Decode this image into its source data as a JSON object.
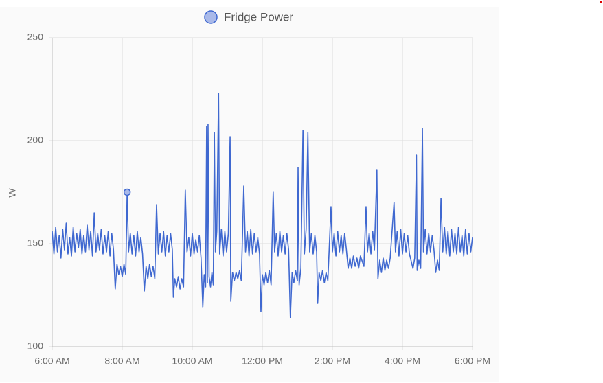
{
  "chart_data": {
    "type": "line",
    "y_label": "W",
    "series": [
      {
        "name": "Fridge Power",
        "color": "#3f68d0",
        "legend_fill": "#a9b9e9",
        "x": [
          6.0,
          6.05,
          6.1,
          6.15,
          6.2,
          6.25,
          6.3,
          6.35,
          6.4,
          6.45,
          6.5,
          6.55,
          6.6,
          6.65,
          6.7,
          6.75,
          6.8,
          6.85,
          6.9,
          6.95,
          7.0,
          7.05,
          7.1,
          7.15,
          7.2,
          7.25,
          7.3,
          7.35,
          7.4,
          7.45,
          7.5,
          7.55,
          7.6,
          7.65,
          7.7,
          7.75,
          7.8,
          7.85,
          7.9,
          7.95,
          8.0,
          8.05,
          8.1,
          8.14,
          8.18,
          8.23,
          8.28,
          8.33,
          8.38,
          8.43,
          8.48,
          8.53,
          8.58,
          8.63,
          8.68,
          8.73,
          8.78,
          8.83,
          8.88,
          8.93,
          8.98,
          9.03,
          9.08,
          9.13,
          9.18,
          9.23,
          9.28,
          9.33,
          9.38,
          9.43,
          9.46,
          9.5,
          9.55,
          9.6,
          9.65,
          9.7,
          9.75,
          9.8,
          9.85,
          9.9,
          9.95,
          10.0,
          10.05,
          10.1,
          10.15,
          10.2,
          10.25,
          10.3,
          10.34,
          10.38,
          10.41,
          10.43,
          10.45,
          10.48,
          10.52,
          10.56,
          10.6,
          10.63,
          10.66,
          10.7,
          10.75,
          10.78,
          10.83,
          10.88,
          10.93,
          10.98,
          11.03,
          11.08,
          11.1,
          11.15,
          11.2,
          11.25,
          11.3,
          11.35,
          11.4,
          11.47,
          11.52,
          11.57,
          11.62,
          11.67,
          11.72,
          11.77,
          11.82,
          11.87,
          11.92,
          11.96,
          12.0,
          12.05,
          12.1,
          12.15,
          12.2,
          12.25,
          12.31,
          12.35,
          12.4,
          12.45,
          12.5,
          12.55,
          12.6,
          12.65,
          12.7,
          12.75,
          12.8,
          12.85,
          12.9,
          12.95,
          13.0,
          13.02,
          13.05,
          13.1,
          13.16,
          13.2,
          13.25,
          13.3,
          13.35,
          13.4,
          13.45,
          13.5,
          13.55,
          13.58,
          13.62,
          13.67,
          13.72,
          13.77,
          13.82,
          13.87,
          13.96,
          14.0,
          14.05,
          14.1,
          14.15,
          14.2,
          14.25,
          14.3,
          14.35,
          14.4,
          14.45,
          14.5,
          14.55,
          14.6,
          14.65,
          14.7,
          14.75,
          14.8,
          14.9,
          14.96,
          15.0,
          15.05,
          15.1,
          15.15,
          15.2,
          15.27,
          15.3,
          15.35,
          15.4,
          15.45,
          15.5,
          15.55,
          15.6,
          15.65,
          15.76,
          15.8,
          15.85,
          15.9,
          15.95,
          16.0,
          16.05,
          16.1,
          16.15,
          16.2,
          16.3,
          16.35,
          16.4,
          16.42,
          16.47,
          16.52,
          16.57,
          16.6,
          16.65,
          16.7,
          16.75,
          16.8,
          16.85,
          16.9,
          16.95,
          17.0,
          17.05,
          17.1,
          17.15,
          17.2,
          17.25,
          17.3,
          17.35,
          17.4,
          17.45,
          17.5,
          17.55,
          17.6,
          17.65,
          17.7,
          17.75,
          17.8,
          17.85,
          17.9,
          17.95,
          18.0
        ],
        "values": [
          156,
          145,
          158,
          146,
          154,
          143,
          157,
          147,
          160,
          145,
          153,
          144,
          158,
          146,
          155,
          148,
          157,
          145,
          154,
          146,
          159,
          147,
          156,
          144,
          165,
          146,
          155,
          147,
          157,
          145,
          154,
          146,
          156,
          144,
          155,
          147,
          128,
          140,
          135,
          139,
          134,
          140,
          135,
          175,
          146,
          155,
          145,
          154,
          144,
          156,
          146,
          153,
          145,
          127,
          139,
          133,
          140,
          134,
          139,
          133,
          169,
          145,
          155,
          146,
          156,
          144,
          154,
          146,
          155,
          147,
          124,
          133,
          129,
          134,
          128,
          133,
          129,
          176,
          146,
          153,
          144,
          155,
          145,
          152,
          146,
          154,
          143,
          119,
          135,
          129,
          207,
          131,
          208,
          134,
          129,
          136,
          130,
          204,
          146,
          156,
          223,
          145,
          157,
          144,
          156,
          146,
          155,
          202,
          122,
          136,
          132,
          136,
          133,
          137,
          132,
          178,
          146,
          156,
          144,
          157,
          145,
          155,
          146,
          153,
          145,
          117,
          135,
          130,
          136,
          131,
          137,
          130,
          175,
          146,
          155,
          144,
          156,
          146,
          154,
          145,
          155,
          147,
          114,
          136,
          131,
          137,
          132,
          187,
          130,
          138,
          205,
          145,
          157,
          204,
          146,
          155,
          145,
          154,
          146,
          121,
          136,
          132,
          137,
          131,
          136,
          132,
          168,
          146,
          155,
          144,
          156,
          146,
          154,
          145,
          155,
          147,
          138,
          143,
          138,
          144,
          139,
          143,
          138,
          144,
          139,
          168,
          146,
          155,
          145,
          156,
          147,
          186,
          133,
          142,
          136,
          143,
          137,
          142,
          138,
          143,
          170,
          146,
          156,
          144,
          157,
          145,
          155,
          146,
          154,
          145,
          138,
          143,
          193,
          137,
          142,
          138,
          206,
          146,
          157,
          145,
          155,
          146,
          154,
          147,
          136,
          142,
          137,
          172,
          146,
          158,
          145,
          156,
          144,
          157,
          146,
          155,
          145,
          158,
          146,
          154,
          144,
          157,
          145,
          155,
          146,
          153
        ],
        "highlighted_index": 43
      }
    ],
    "xlim": [
      6,
      18
    ],
    "xticks": [
      {
        "value": 6,
        "label": "6:00 AM"
      },
      {
        "value": 8,
        "label": "8:00 AM"
      },
      {
        "value": 10,
        "label": "10:00 AM"
      },
      {
        "value": 12,
        "label": "12:00 PM"
      },
      {
        "value": 14,
        "label": "2:00 PM"
      },
      {
        "value": 16,
        "label": "4:00 PM"
      },
      {
        "value": 18,
        "label": "6:00 PM"
      }
    ],
    "ylim": [
      100,
      250
    ],
    "yticks": [
      100,
      150,
      200,
      250
    ],
    "grid": true
  }
}
